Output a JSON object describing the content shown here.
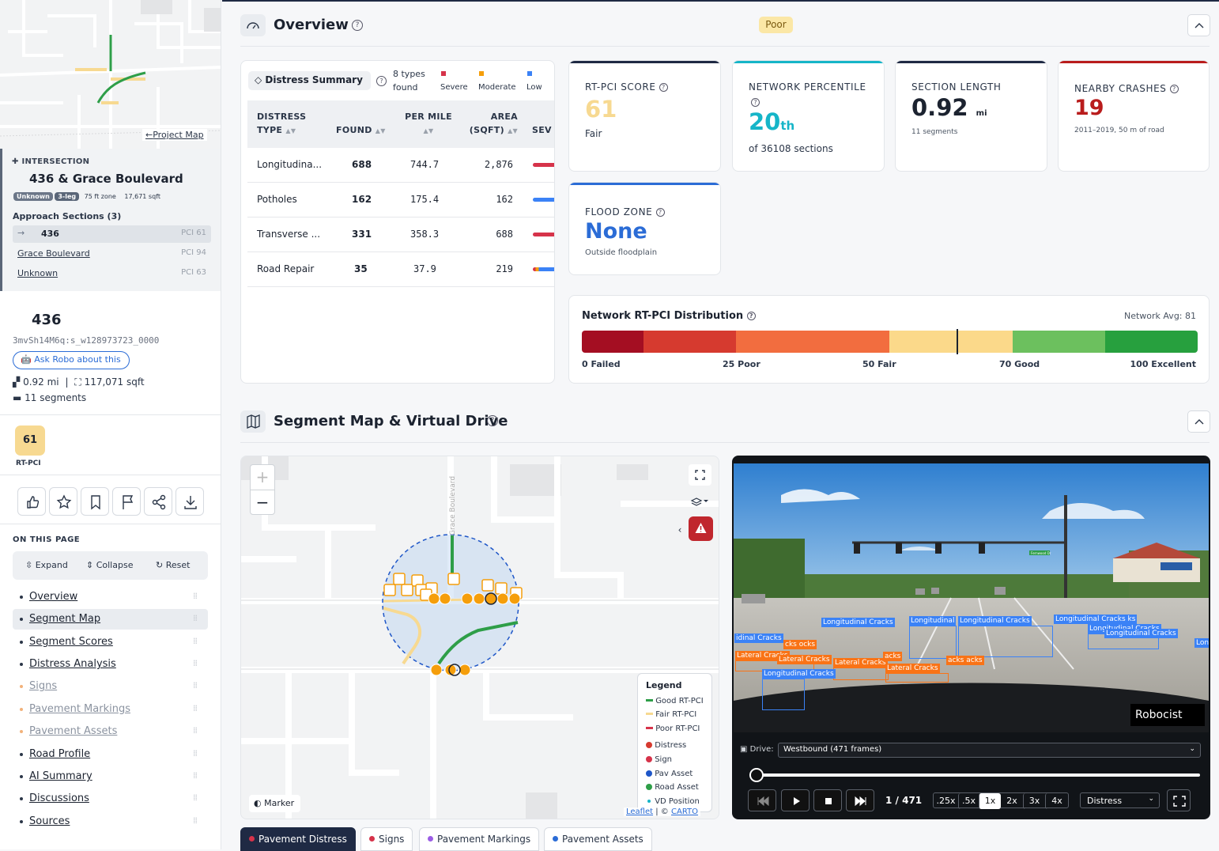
{
  "sidebar": {
    "project_map_link": "Project Map",
    "intersection": {
      "kicker": "INTERSECTION",
      "name": "436 & Grace Boulevard",
      "tags": [
        "Unknown",
        "3-leg"
      ],
      "zone": "75 ft zone",
      "area": "17,671 sqft",
      "approach_title": "Approach Sections (3)",
      "approaches": [
        {
          "name": "436",
          "pci": "PCI 61"
        },
        {
          "name": "Grace Boulevard",
          "pci": "PCI 94"
        },
        {
          "name": "Unknown",
          "pci": "PCI 63"
        }
      ]
    },
    "road": {
      "name": "436",
      "id": "3mvSh14M6q:s_w128973723_0000",
      "ask_label": "Ask Robo about this",
      "length": "0.92 mi",
      "separator": "|",
      "area": "117,071 sqft",
      "segments": "11 segments"
    },
    "score": {
      "value": "61",
      "label": "RT-PCI",
      "color": "#f7d991"
    },
    "actions": [
      "thumbs-up-icon",
      "star-icon",
      "bookmark-icon",
      "flag-icon",
      "share-icon",
      "download-icon"
    ],
    "on_this_page": "ON THIS PAGE",
    "controls": {
      "expand": "Expand",
      "collapse": "Collapse",
      "reset": "Reset"
    },
    "toc": [
      {
        "label": "Overview",
        "dim": false
      },
      {
        "label": "Segment Map",
        "dim": false,
        "active": true
      },
      {
        "label": "Segment Scores",
        "dim": false
      },
      {
        "label": "Distress Analysis",
        "dim": false
      },
      {
        "label": "Signs",
        "dim": true
      },
      {
        "label": "Pavement Markings",
        "dim": true
      },
      {
        "label": "Pavement Assets",
        "dim": true
      },
      {
        "label": "Road Profile",
        "dim": false
      },
      {
        "label": "AI Summary",
        "dim": false
      },
      {
        "label": "Discussions",
        "dim": false
      },
      {
        "label": "Sources",
        "dim": false
      }
    ]
  },
  "overview": {
    "title": "Overview",
    "badge": "Poor",
    "distress_summary": {
      "title": "Distress Summary",
      "types_found": "8 types found",
      "legend": [
        {
          "label": "Severe",
          "color": "#d6334a"
        },
        {
          "label": "Moderate",
          "color": "#f59e0b"
        },
        {
          "label": "Low",
          "color": "#3b82f6"
        }
      ],
      "columns": [
        "DISTRESS TYPE",
        "FOUND",
        "PER MILE",
        "AREA (SQFT)",
        "SEV"
      ],
      "rows": [
        {
          "type": "Longitudina...",
          "found": "688",
          "per_mile": "744.7",
          "area": "2,876",
          "sev": "severe"
        },
        {
          "type": "Potholes",
          "found": "162",
          "per_mile": "175.4",
          "area": "162",
          "sev": "low"
        },
        {
          "type": "Transverse ...",
          "found": "331",
          "per_mile": "358.3",
          "area": "688",
          "sev": "severe"
        },
        {
          "type": "Road Repair",
          "found": "35",
          "per_mile": "37.9",
          "area": "219",
          "sev": "mixed"
        }
      ]
    },
    "metrics": {
      "rtpci": {
        "label": "RT-PCI SCORE",
        "value": "61",
        "sub": "Fair",
        "accent": "#1f2a44"
      },
      "percentile": {
        "label": "NETWORK PERCENTILE",
        "value": "20",
        "suffix": "th",
        "sub": "of 36108 sections",
        "accent": "#16b5c8"
      },
      "length": {
        "label": "SECTION LENGTH",
        "value": "0.92",
        "unit": "mi",
        "sub": "11 segments",
        "accent": "#1f2a44"
      },
      "crashes": {
        "label": "NEARBY CRASHES",
        "value": "19",
        "sub": "2011–2019, 50 m of road",
        "accent": "#b91c1c"
      },
      "flood": {
        "label": "FLOOD ZONE",
        "value": "None",
        "sub": "Outside floodplain",
        "accent": "#2b6cd6"
      }
    },
    "distribution": {
      "title": "Network RT-PCI Distribution",
      "avg": "Network Avg: 81",
      "marker_value": 61,
      "labels": [
        "0 Failed",
        "25 Poor",
        "50 Fair",
        "70 Good",
        "100 Excellent"
      ]
    }
  },
  "segment_map": {
    "title": "Segment Map & Virtual Drive",
    "map": {
      "zoom_in": "+",
      "zoom_out": "−",
      "street_label": "Grace Boulevard",
      "marker_button": "Marker",
      "attribution_leaflet": "Leaflet",
      "attribution_sep": "| ©",
      "attribution_carto": "CARTO",
      "legend": {
        "title": "Legend",
        "items": [
          {
            "label": "Good RT-PCI",
            "kind": "line",
            "color": "#2e9e48"
          },
          {
            "label": "Fair RT-PCI",
            "kind": "line",
            "color": "#f7d991"
          },
          {
            "label": "Poor RT-PCI",
            "kind": "line",
            "color": "#d6334a"
          },
          {
            "label": "Distress",
            "kind": "dot",
            "color": "#d63a2f"
          },
          {
            "label": "Sign",
            "kind": "dot",
            "color": "#d6334a"
          },
          {
            "label": "Pav Asset",
            "kind": "dot",
            "color": "#1e56c8"
          },
          {
            "label": "Road Asset",
            "kind": "dot",
            "color": "#2e9e48"
          },
          {
            "label": "VD Position",
            "kind": "small",
            "color": "#16b5c8"
          }
        ]
      }
    },
    "video": {
      "watermark": "Robocist",
      "drive_label": "Drive:",
      "drive_value": "Westbound (471 frames)",
      "frame_counter": "1 / 471",
      "progress": 0.0,
      "speeds": [
        ".25x",
        ".5x",
        "1x",
        "2x",
        "3x",
        "4x"
      ],
      "active_speed": "1x",
      "overlay_select": "Distress",
      "detections": {
        "longitudinal": "Longitudinal Cracks",
        "lateral": "Lateral Cracks",
        "frag_1": "Longitudinal",
        "frag_2": "Longitudinal Cracks",
        "frag_3": "Longitudinal Cracks ks",
        "frag_4": "Longitudinal Cracks",
        "frag_5": "Longitudinal Cracks",
        "frag_6": "Lon",
        "frag_7": "idinal Cracks",
        "frag_8": "Lateral Cracks",
        "frag_9": "cks ocks",
        "frag_10": "Lateral Cracks",
        "frag_11": "acks",
        "frag_12": "Lateral Cracks",
        "frag_13": "acks acks"
      },
      "street_sign": "Fernwood Dr"
    },
    "tabs": [
      {
        "label": "Pavement Distress",
        "color": "#d6334a",
        "active": true
      },
      {
        "label": "Signs",
        "color": "#d6334a",
        "active": false
      },
      {
        "label": "Pavement Markings",
        "color": "#9b5de5",
        "active": false
      },
      {
        "label": "Pavement Assets",
        "color": "#2b6cd6",
        "active": false
      }
    ]
  }
}
